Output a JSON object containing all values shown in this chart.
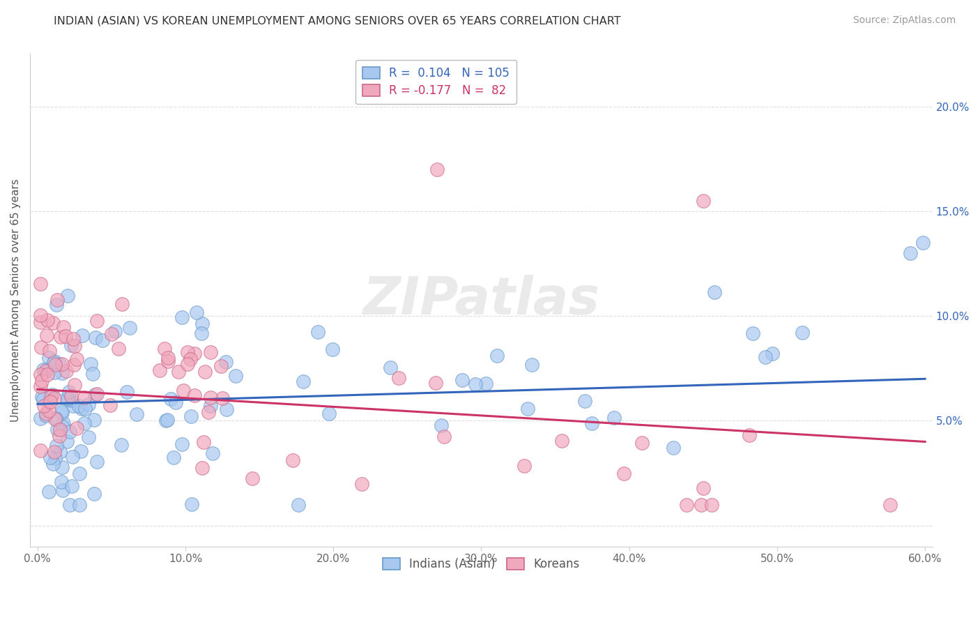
{
  "title": "INDIAN (ASIAN) VS KOREAN UNEMPLOYMENT AMONG SENIORS OVER 65 YEARS CORRELATION CHART",
  "source": "Source: ZipAtlas.com",
  "ylabel": "Unemployment Among Seniors over 65 years",
  "xlim": [
    -0.005,
    0.605
  ],
  "ylim": [
    -0.01,
    0.225
  ],
  "xticks": [
    0.0,
    0.1,
    0.2,
    0.3,
    0.4,
    0.5,
    0.6
  ],
  "yticks": [
    0.05,
    0.1,
    0.15,
    0.2
  ],
  "ytick_labels": [
    "5.0%",
    "10.0%",
    "15.0%",
    "20.0%"
  ],
  "xtick_labels": [
    "0.0%",
    "10.0%",
    "20.0%",
    "30.0%",
    "40.0%",
    "50.0%",
    "60.0%"
  ],
  "legend_indian_r": " 0.104",
  "legend_indian_n": "105",
  "legend_korean_r": "-0.177",
  "legend_korean_n": "82",
  "indian_color": "#a8c8f0",
  "korean_color": "#f0a8bc",
  "indian_edge_color": "#6699cc",
  "korean_edge_color": "#cc6688",
  "indian_line_color": "#3366bb",
  "korean_line_color": "#cc3366",
  "title_color": "#333333",
  "source_color": "#999999",
  "grid_color": "#dddddd",
  "watermark_color": "#cccccc",
  "background_color": "#ffffff",
  "legend_text_color": "#3366bb",
  "indian_trend_start_y": 0.058,
  "indian_trend_end_y": 0.07,
  "korean_trend_start_y": 0.065,
  "korean_trend_end_y": 0.04
}
